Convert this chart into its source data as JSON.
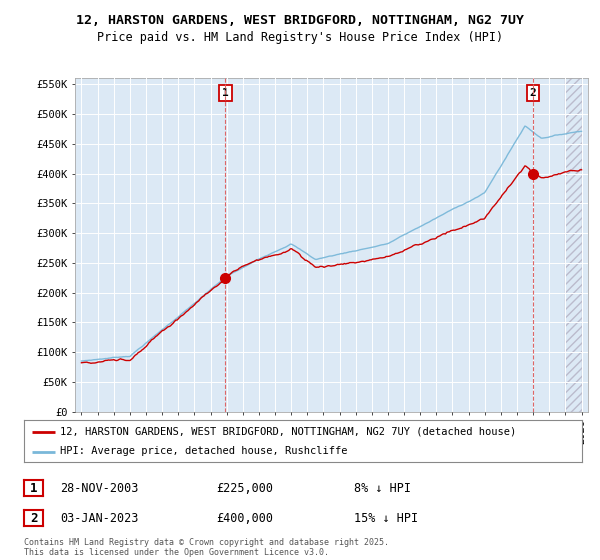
{
  "title_line1": "12, HARSTON GARDENS, WEST BRIDGFORD, NOTTINGHAM, NG2 7UY",
  "title_line2": "Price paid vs. HM Land Registry's House Price Index (HPI)",
  "background_color": "#ffffff",
  "plot_bg_color": "#dce9f5",
  "grid_color": "#ffffff",
  "hpi_color": "#7ab8d9",
  "price_color": "#cc0000",
  "vline_color": "#dd6666",
  "purchase1_year": 2003.92,
  "purchase1_price": 225000,
  "purchase2_year": 2023.0,
  "purchase2_price": 400000,
  "legend_line1": "12, HARSTON GARDENS, WEST BRIDGFORD, NOTTINGHAM, NG2 7UY (detached house)",
  "legend_line2": "HPI: Average price, detached house, Rushcliffe",
  "p1_label": "1",
  "p1_date": "28-NOV-2003",
  "p1_price": "£225,000",
  "p1_pct": "8% ↓ HPI",
  "p2_label": "2",
  "p2_date": "03-JAN-2023",
  "p2_price": "£400,000",
  "p2_pct": "15% ↓ HPI",
  "footnote": "Contains HM Land Registry data © Crown copyright and database right 2025.\nThis data is licensed under the Open Government Licence v3.0.",
  "ylim": [
    0,
    560000
  ],
  "yticks": [
    0,
    50000,
    100000,
    150000,
    200000,
    250000,
    300000,
    350000,
    400000,
    450000,
    500000,
    550000
  ],
  "ytick_labels": [
    "£0",
    "£50K",
    "£100K",
    "£150K",
    "£200K",
    "£250K",
    "£300K",
    "£350K",
    "£400K",
    "£450K",
    "£500K",
    "£550K"
  ],
  "xstart": 1995,
  "xend": 2026
}
